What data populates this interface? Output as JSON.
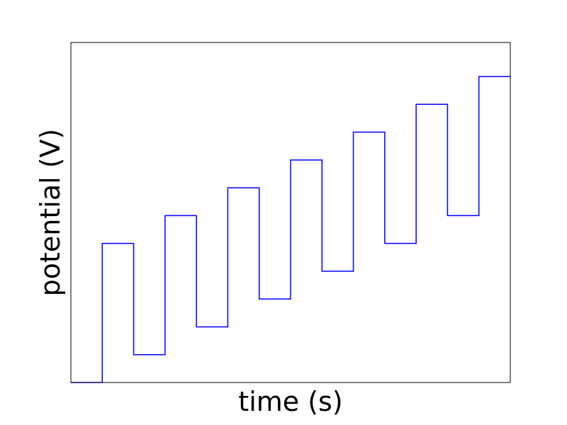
{
  "chart_data": {
    "type": "line",
    "step": "post",
    "xlabel": "time (s)",
    "ylabel": "potential (V)",
    "xticks": [],
    "yticks": [],
    "xlim": [
      0,
      14
    ],
    "ylim": [
      0,
      11
    ],
    "grid": false,
    "legend": "none",
    "series": [
      {
        "color": "#0000ff",
        "x": [
          0,
          1,
          2,
          3,
          4,
          5,
          6,
          7,
          8,
          9,
          10,
          11,
          12,
          13,
          14
        ],
        "y": [
          0,
          4.5,
          0.9,
          5.4,
          1.8,
          6.3,
          2.7,
          7.2,
          3.6,
          8.1,
          4.5,
          9.0,
          5.4,
          9.9,
          9.9
        ]
      }
    ]
  }
}
